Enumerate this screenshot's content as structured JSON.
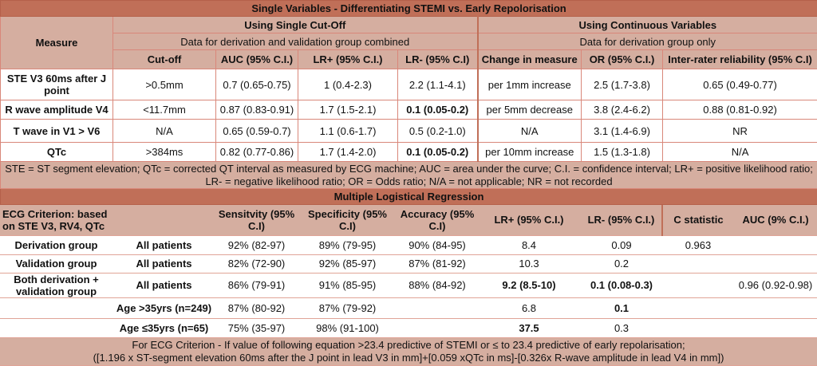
{
  "single": {
    "title": "Single Variables - Differentiating STEMI vs. Early Repolorisation",
    "measure_header": "Measure",
    "cutoff_group": "Using Single Cut-Off",
    "cutoff_sub": "Data for derivation and validation group combined",
    "cont_group": "Using Continuous Variables",
    "cont_sub": "Data for derivation group only",
    "columns": [
      "Cut-off",
      "AUC (95% C.I.)",
      "LR+ (95% C.I.)",
      "LR- (95% C.I)",
      "Change in measure",
      "OR (95% C.I.)",
      "Inter-rater reliability (95% C.I)"
    ],
    "rows": [
      {
        "measure": "STE V3 60ms after J point",
        "cells": [
          {
            "t": ">0.5mm"
          },
          {
            "t": "0.7 (0.65-0.75)"
          },
          {
            "t": "1 (0.4-2.3)"
          },
          {
            "t": "2.2 (1.1-4.1)"
          },
          {
            "t": "per 1mm increase"
          },
          {
            "t": "2.5 (1.7-3.8)"
          },
          {
            "t": "0.65 (0.49-0.77)"
          }
        ]
      },
      {
        "measure": "R wave amplitude V4",
        "cells": [
          {
            "t": "<11.7mm"
          },
          {
            "t": "0.87 (0.83-0.91)"
          },
          {
            "t": "1.7 (1.5-2.1)"
          },
          {
            "t": "0.1 (0.05-0.2)",
            "b": true
          },
          {
            "t": "per 5mm decrease"
          },
          {
            "t": "3.8 (2.4-6.2)"
          },
          {
            "t": "0.88 (0.81-0.92)"
          }
        ]
      },
      {
        "measure": "T wave in V1 > V6",
        "cells": [
          {
            "t": "N/A"
          },
          {
            "t": "0.65 (0.59-0.7)"
          },
          {
            "t": "1.1 (0.6-1.7)"
          },
          {
            "t": "0.5 (0.2-1.0)"
          },
          {
            "t": "N/A"
          },
          {
            "t": "3.1 (1.4-6.9)"
          },
          {
            "t": "NR"
          }
        ]
      },
      {
        "measure": "QTc",
        "cells": [
          {
            "t": ">384ms"
          },
          {
            "t": "0.82 (0.77-0.86)"
          },
          {
            "t": "1.7 (1.4-2.0)"
          },
          {
            "t": "0.1 (0.05-0.2)",
            "b": true
          },
          {
            "t": "per 10mm increase"
          },
          {
            "t": "1.5 (1.3-1.8)"
          },
          {
            "t": "N/A"
          }
        ]
      }
    ],
    "footnote": "STE = ST segment elevation; QTc = corrected QT interval as measured by ECG machine; AUC = area under the curve; C.I. = confidence interval; LR+ = positive likelihood ratio; LR- = negative likelihood ratio; OR = Odds ratio; N/A = not applicable; NR = not recorded"
  },
  "regression": {
    "title": "Multiple Logistical Regression",
    "columns": [
      "ECG Criterion: based on  STE V3, RV4, QTc",
      "",
      "Sensitvity (95% C.I)",
      "Specificity (95% C.I)",
      "Accuracy (95% C.I)",
      "LR+ (95% C.I.)",
      "LR- (95% C.I.)",
      "C statistic",
      "AUC (9% C.I.)"
    ],
    "rows": [
      {
        "cells": [
          {
            "t": "Derivation group",
            "b": true
          },
          {
            "t": "All patients",
            "b": true
          },
          {
            "t": "92% (82-97)"
          },
          {
            "t": "89% (79-95)"
          },
          {
            "t": "90% (84-95)"
          },
          {
            "t": "8.4"
          },
          {
            "t": "0.09"
          },
          {
            "t": "0.963"
          },
          {
            "t": ""
          }
        ]
      },
      {
        "cells": [
          {
            "t": "Validation group",
            "b": true
          },
          {
            "t": "All patients",
            "b": true
          },
          {
            "t": "82% (72-90)"
          },
          {
            "t": "92% (85-97)"
          },
          {
            "t": "87% (81-92)"
          },
          {
            "t": "10.3"
          },
          {
            "t": "0.2"
          },
          {
            "t": ""
          },
          {
            "t": ""
          }
        ]
      },
      {
        "cells": [
          {
            "t": "Both derivation + validation group",
            "b": true
          },
          {
            "t": "All patients",
            "b": true
          },
          {
            "t": "86% (79-91)"
          },
          {
            "t": "91% (85-95)"
          },
          {
            "t": "88% (84-92)"
          },
          {
            "t": "9.2 (8.5-10)",
            "b": true
          },
          {
            "t": "0.1 (0.08-0.3)",
            "b": true
          },
          {
            "t": ""
          },
          {
            "t": "0.96 (0.92-0.98)"
          }
        ]
      },
      {
        "cells": [
          {
            "t": ""
          },
          {
            "t": "Age >35yrs (n=249)",
            "b": true
          },
          {
            "t": "87% (80-92)"
          },
          {
            "t": "87% (79-92)"
          },
          {
            "t": ""
          },
          {
            "t": "6.8"
          },
          {
            "t": "0.1",
            "b": true
          },
          {
            "t": ""
          },
          {
            "t": ""
          }
        ]
      },
      {
        "cells": [
          {
            "t": ""
          },
          {
            "t": "Age ≤35yrs (n=65)",
            "b": true
          },
          {
            "t": "75% (35-97)"
          },
          {
            "t": "98% (91-100)"
          },
          {
            "t": ""
          },
          {
            "t": "37.5",
            "b": true
          },
          {
            "t": "0.3"
          },
          {
            "t": ""
          },
          {
            "t": ""
          }
        ]
      }
    ],
    "footer_line1": "For ECG Criterion -  If value of following equation >23.4 predictive of STEMI or ≤ to 23.4 predictive of early repolarisation;",
    "footer_line2": "([1.196 x ST-segment elevation 60ms after the J point in lead V3 in mm]+[0.059 xQTc in ms]-[0.326x R-wave amplitude in lead V4 in mm])"
  },
  "colors": {
    "title_bar": "#c06f58",
    "header": "#d5aea0",
    "border": "#d9877a"
  }
}
